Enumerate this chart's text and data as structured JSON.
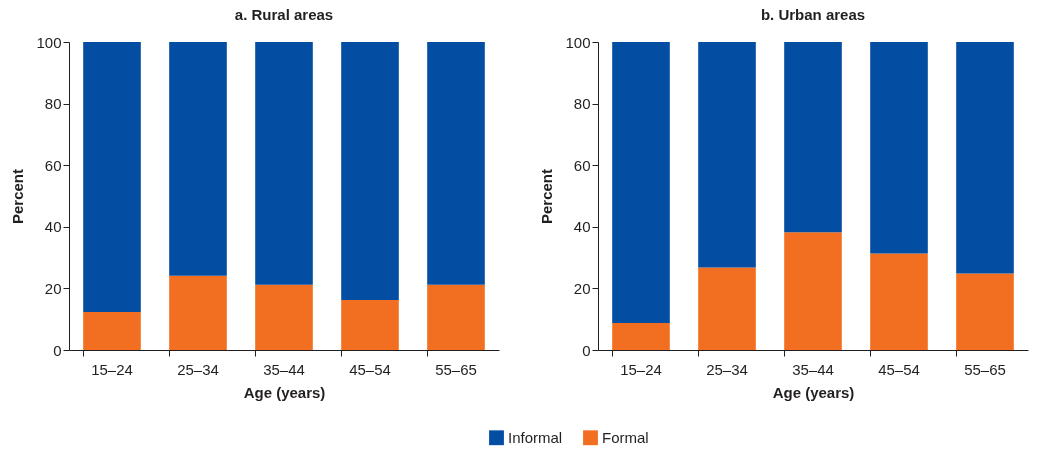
{
  "chart_data": [
    {
      "type": "bar",
      "title": "a. Rural areas",
      "xlabel": "Age (years)",
      "ylabel": "Percent",
      "categories": [
        "15–24",
        "25–34",
        "35–44",
        "45–54",
        "55–65"
      ],
      "stacked": true,
      "ylim": [
        0,
        100
      ],
      "yticks": [
        0,
        20,
        40,
        60,
        80,
        100
      ],
      "legend": "bottom",
      "series": [
        {
          "name": "Formal",
          "color": "#f26f21",
          "values": [
            12.3,
            24.1,
            21.2,
            16.2,
            21.2
          ]
        },
        {
          "name": "Informal",
          "color": "#034ea2",
          "values": [
            87.7,
            75.9,
            78.8,
            83.8,
            78.8
          ]
        }
      ]
    },
    {
      "type": "bar",
      "title": "b. Urban areas",
      "xlabel": "Age (years)",
      "ylabel": "Percent",
      "categories": [
        "15–24",
        "25–34",
        "35–44",
        "45–54",
        "55–65"
      ],
      "stacked": true,
      "ylim": [
        0,
        100
      ],
      "yticks": [
        0,
        20,
        40,
        60,
        80,
        100
      ],
      "legend": "bottom",
      "series": [
        {
          "name": "Formal",
          "color": "#f26f21",
          "values": [
            8.8,
            26.8,
            38.2,
            31.3,
            24.8
          ]
        },
        {
          "name": "Informal",
          "color": "#034ea2",
          "values": [
            91.2,
            73.2,
            61.8,
            68.7,
            75.2
          ]
        }
      ]
    }
  ]
}
